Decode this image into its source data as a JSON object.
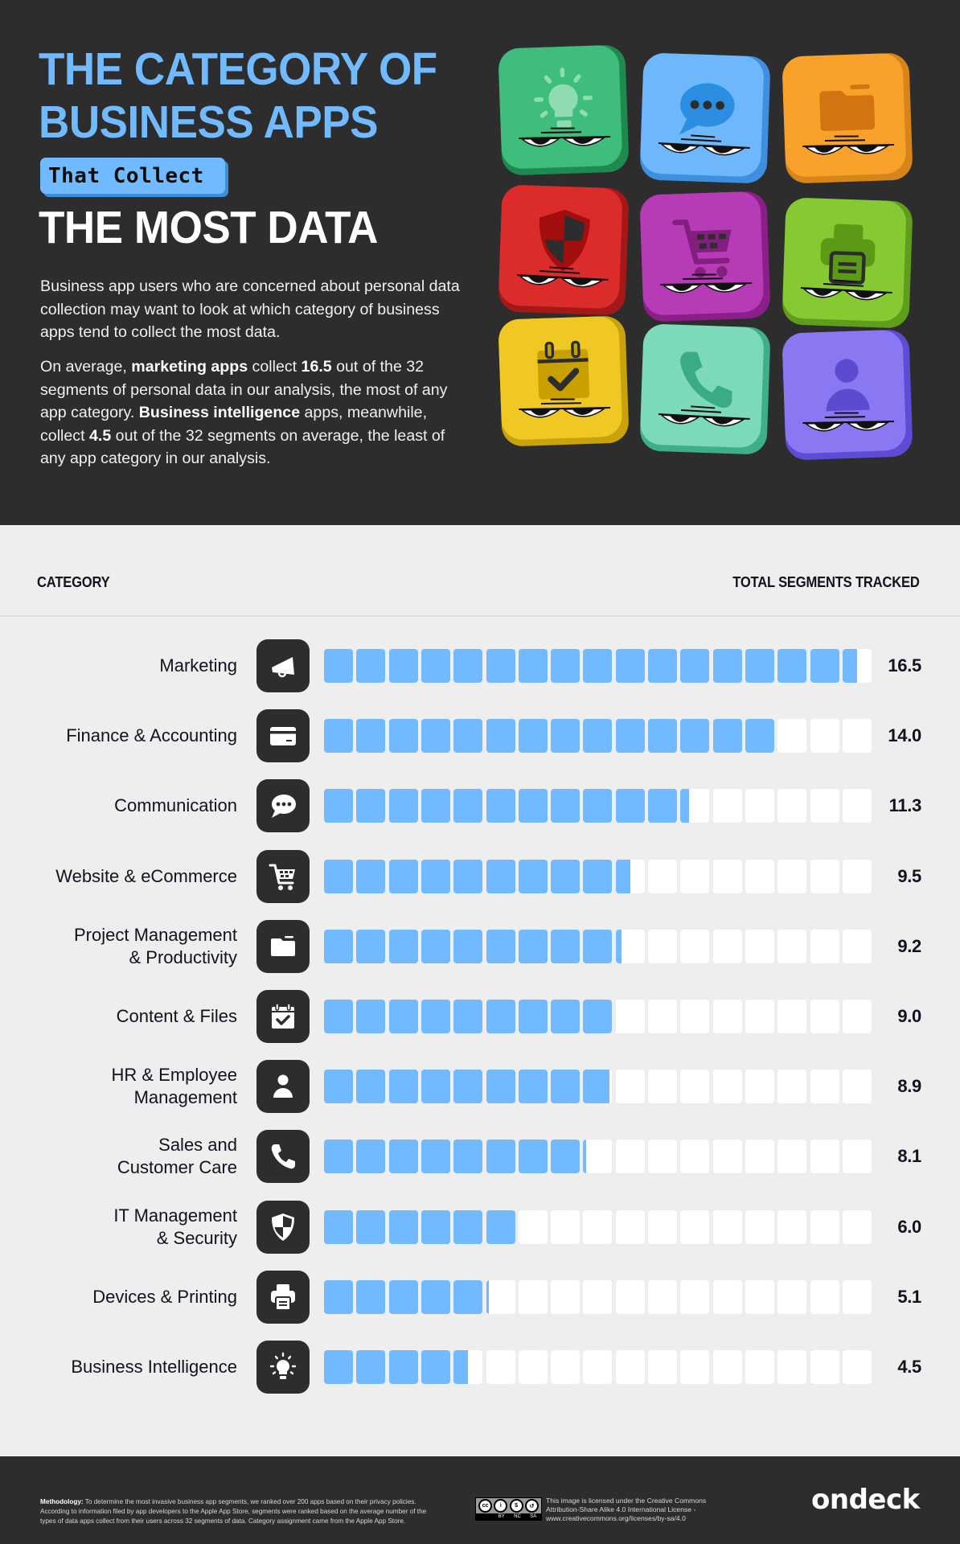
{
  "header": {
    "title_line1": "THE CATEGORY OF",
    "title_line2": "BUSINESS APPS",
    "badge": "That Collect",
    "title_line3": "THE MOST DATA",
    "intro_p1": "Business app users who are concerned about personal data collection may want to look at which category of business apps tend to collect the most data.",
    "intro_p2_parts": {
      "a": "On average, ",
      "b": "marketing apps",
      "c": " collect ",
      "d": "16.5",
      "e": " out of the 32 segments of personal data in our analysis, the most of any app category. ",
      "f": "Business intelligence",
      "g": " apps, meanwhile, collect ",
      "h": "4.5",
      "i": " out of the 32 segments on average, the least of any app category in our analysis."
    },
    "tiles": [
      {
        "icon": "lightbulb-icon",
        "color": "#3ebd7c",
        "dark": "#1f8a4f",
        "glyph": "#8fdcb3"
      },
      {
        "icon": "chat-bubble-icon",
        "color": "#6fb7fb",
        "dark": "#3e8fe0",
        "glyph": "#2c8ee0"
      },
      {
        "icon": "folder-icon",
        "color": "#f8a12b",
        "dark": "#d7841a",
        "glyph": "#d47311"
      },
      {
        "icon": "shield-icon",
        "color": "#dc2b2b",
        "dark": "#a51818",
        "glyph": "#a30d0d"
      },
      {
        "icon": "shopping-cart-icon",
        "color": "#b73ab7",
        "dark": "#8a1f8a",
        "glyph": "#83207f"
      },
      {
        "icon": "printer-icon",
        "color": "#86c932",
        "dark": "#5f9d1c",
        "glyph": "#5c9a15"
      },
      {
        "icon": "calendar-check-icon",
        "color": "#efc823",
        "dark": "#c9a30e",
        "glyph": "#c8a000"
      },
      {
        "icon": "phone-icon",
        "color": "#7cd9bb",
        "dark": "#3fae8a",
        "glyph": "#3aab83"
      },
      {
        "icon": "user-icon",
        "color": "#8a78f2",
        "dark": "#5e4bd6",
        "glyph": "#5b4bd1"
      }
    ]
  },
  "chart": {
    "col_left": "CATEGORY",
    "col_right": "TOTAL SEGMENTS TRACKED",
    "colors": {
      "fill": "#72baff",
      "empty": "#ffffff",
      "icon_bg": "#2d2d2d"
    }
  },
  "chart_data": {
    "type": "bar",
    "title": "The Category of Business Apps That Collect the Most Data",
    "xlabel": "Total Segments Tracked",
    "ylabel": "Category",
    "orientation": "horizontal",
    "unit_cells": 17,
    "xlim": [
      0,
      17
    ],
    "grid": false,
    "categories": [
      "Marketing",
      "Finance & Accounting",
      "Communication",
      "Website & eCommerce",
      "Project Management & Productivity",
      "Content & Files",
      "HR & Employee Management",
      "Sales and Customer Care",
      "IT Management & Security",
      "Devices & Printing",
      "Business Intelligence"
    ],
    "values": [
      16.5,
      14.0,
      11.3,
      9.5,
      9.2,
      9.0,
      8.9,
      8.1,
      6.0,
      5.1,
      4.5
    ]
  },
  "rows": [
    {
      "label": "Marketing",
      "value": "16.5",
      "icon": "megaphone-icon"
    },
    {
      "label": "Finance & Accounting",
      "value": "14.0",
      "icon": "credit-card-icon"
    },
    {
      "label": "Communication",
      "value": "11.3",
      "icon": "chat-bubble-icon"
    },
    {
      "label": "Website & eCommerce",
      "value": "9.5",
      "icon": "shopping-cart-icon"
    },
    {
      "label": "Project Management\n& Productivity",
      "value": "9.2",
      "icon": "folder-icon"
    },
    {
      "label": "Content & Files",
      "value": "9.0",
      "icon": "calendar-check-icon"
    },
    {
      "label": "HR & Employee\nManagement",
      "value": "8.9",
      "icon": "user-icon"
    },
    {
      "label": "Sales and\nCustomer Care",
      "value": "8.1",
      "icon": "phone-icon"
    },
    {
      "label": "IT Management\n& Security",
      "value": "6.0",
      "icon": "shield-icon"
    },
    {
      "label": "Devices & Printing",
      "value": "5.1",
      "icon": "printer-icon"
    },
    {
      "label": "Business Intelligence",
      "value": "4.5",
      "icon": "lightbulb-icon"
    }
  ],
  "footer": {
    "methodology_label": "Methodology:",
    "methodology_text": " To determine the most invasive business app segments, we ranked over 200 apps based on their privacy policies. According to information filed by app developers to the Apple App Store, segments were ranked based on the average number of the types of data apps collect from their users across 32 segments of data. Category assignment came from the Apple App Store.",
    "cc_badge": {
      "top": [
        "cc",
        "BY",
        "NC",
        "SA"
      ],
      "bottom": [
        "BY",
        "NC",
        "SA"
      ]
    },
    "license_line1": "This image is licensed under the Creative Commons",
    "license_line2": "Attribution-Share Alike 4.0 International License -",
    "license_line3": "www.creativecommons.org/licenses/by-sa/4.0",
    "logo": "ondeck"
  }
}
